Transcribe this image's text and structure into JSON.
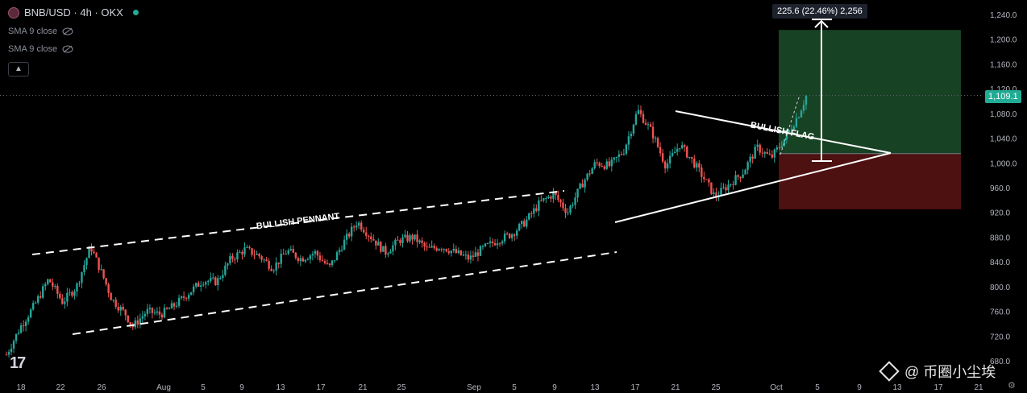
{
  "header": {
    "symbol": "BNB/USD · 4h · OKX",
    "indicators": [
      "SMA 9 close",
      "SMA 9 close"
    ]
  },
  "measure": {
    "label": "225.6 (22.46%) 2,256"
  },
  "price_tag": "1,109.1",
  "watermark": "@ 币圈小尘埃",
  "logo": "17",
  "colors": {
    "up": "#26a69a",
    "down": "#ef5350",
    "profit_zone": "#1b4d2a",
    "loss_zone": "#5a1414",
    "price_tag": "#22ab94"
  },
  "chart_data": {
    "type": "candlestick",
    "title": "BNB/USD · 4h · OKX",
    "y_ticks": [
      1240,
      1200,
      1160,
      1120,
      1080,
      1040,
      1000,
      960,
      920,
      880,
      840,
      800,
      760,
      720,
      680
    ],
    "y_tick_labels": [
      "1,240.0",
      "1,200.0",
      "1,160.0",
      "1,120.0",
      "1,080.0",
      "1,040.0",
      "1,000.0",
      "960.0",
      "920.0",
      "880.0",
      "840.0",
      "800.0",
      "760.0",
      "720.0",
      "680.0"
    ],
    "ylim": [
      680,
      1240
    ],
    "x_ticks": [
      "18",
      "22",
      "26",
      "Aug",
      "5",
      "9",
      "13",
      "17",
      "21",
      "25",
      "Sep",
      "5",
      "9",
      "13",
      "17",
      "21",
      "25",
      "Oct",
      "5",
      "9",
      "13",
      "17",
      "21"
    ],
    "last_price": 1109.1,
    "annotations": [
      {
        "text": "BULLISH PENNANT"
      },
      {
        "text": "BULLISH FLAG"
      }
    ],
    "price_path": [
      [
        0,
        690
      ],
      [
        2,
        735
      ],
      [
        4,
        770
      ],
      [
        6,
        812
      ],
      [
        8,
        775
      ],
      [
        10,
        800
      ],
      [
        12,
        865
      ],
      [
        14,
        810
      ],
      [
        15,
        780
      ],
      [
        17,
        755
      ],
      [
        18,
        735
      ],
      [
        20,
        760
      ],
      [
        22,
        755
      ],
      [
        24,
        770
      ],
      [
        26,
        790
      ],
      [
        28,
        810
      ],
      [
        30,
        808
      ],
      [
        32,
        845
      ],
      [
        34,
        860
      ],
      [
        36,
        850
      ],
      [
        38,
        830
      ],
      [
        40,
        858
      ],
      [
        42,
        845
      ],
      [
        44,
        855
      ],
      [
        46,
        830
      ],
      [
        48,
        870
      ],
      [
        50,
        905
      ],
      [
        52,
        880
      ],
      [
        54,
        855
      ],
      [
        56,
        875
      ],
      [
        58,
        880
      ],
      [
        60,
        860
      ],
      [
        62,
        865
      ],
      [
        64,
        855
      ],
      [
        65,
        850
      ],
      [
        66,
        845
      ],
      [
        68,
        862
      ],
      [
        70,
        875
      ],
      [
        72,
        885
      ],
      [
        74,
        905
      ],
      [
        76,
        935
      ],
      [
        78,
        950
      ],
      [
        80,
        920
      ],
      [
        82,
        965
      ],
      [
        84,
        1000
      ],
      [
        86,
        995
      ],
      [
        88,
        1020
      ],
      [
        90,
        1085
      ],
      [
        92,
        1050
      ],
      [
        94,
        995
      ],
      [
        96,
        1030
      ],
      [
        98,
        1000
      ],
      [
        100,
        965
      ],
      [
        101,
        945
      ],
      [
        103,
        965
      ],
      [
        105,
        985
      ],
      [
        107,
        1025
      ],
      [
        109,
        1008
      ],
      [
        111,
        1040
      ],
      [
        113,
        1080
      ],
      [
        114,
        1108
      ]
    ],
    "trade_box": {
      "entry": 1015,
      "target": 1215,
      "stop": 925
    },
    "measure_arrow": {
      "from": 1003,
      "to": 1232
    }
  }
}
